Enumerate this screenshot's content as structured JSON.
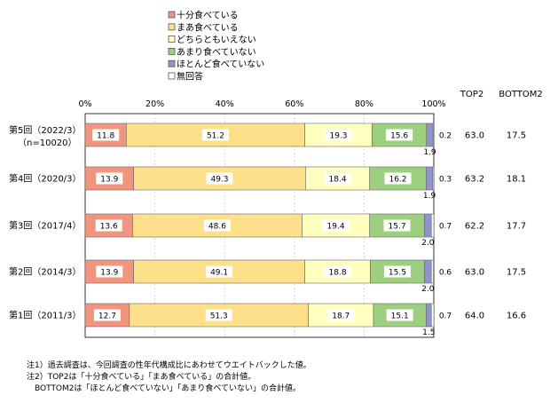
{
  "chart_data": {
    "type": "bar",
    "stacked": true,
    "orientation": "horizontal",
    "percent_scale": true,
    "xlim": [
      0,
      100
    ],
    "x_ticks": [
      "0%",
      "20%",
      "40%",
      "60%",
      "80%",
      "100%"
    ],
    "categories": [
      [
        "第5回（2022/3）",
        "（n=10020）"
      ],
      [
        "第4回（2020/3）"
      ],
      [
        "第3回（2017/4）"
      ],
      [
        "第2回（2014/3）"
      ],
      [
        "第1回（2011/3）"
      ]
    ],
    "series": [
      {
        "name": "十分食べている",
        "color": "#f2957e",
        "values": [
          11.8,
          13.9,
          13.6,
          13.9,
          12.7
        ]
      },
      {
        "name": "まあ食べている",
        "color": "#ffe08a",
        "values": [
          51.2,
          49.3,
          48.6,
          49.1,
          51.3
        ]
      },
      {
        "name": "どちらともいえない",
        "color": "#ffffc0",
        "values": [
          19.3,
          18.4,
          19.4,
          18.8,
          18.7
        ]
      },
      {
        "name": "あまり食べていない",
        "color": "#9ccf7e",
        "values": [
          15.6,
          16.2,
          15.7,
          15.5,
          15.1
        ]
      },
      {
        "name": "ほとんど食べていない",
        "color": "#8d95cf",
        "values": [
          1.9,
          1.9,
          2.0,
          2.0,
          1.5
        ]
      },
      {
        "name": "無回答",
        "color": "#ffffff",
        "values": [
          0.2,
          0.3,
          0.7,
          0.6,
          0.7
        ]
      }
    ],
    "summary_headers": [
      "TOP2",
      "BOTTOM2"
    ],
    "top2": [
      "63.0",
      "63.2",
      "62.2",
      "63.0",
      "64.0"
    ],
    "bottom2": [
      "17.5",
      "18.1",
      "17.7",
      "17.5",
      "16.6"
    ],
    "value_labels": [
      [
        "11.8",
        "51.2",
        "19.3",
        "15.6",
        "1.9",
        "0.2"
      ],
      [
        "13.9",
        "49.3",
        "18.4",
        "16.2",
        "1.9",
        "0.3"
      ],
      [
        "13.6",
        "48.6",
        "19.4",
        "15.7",
        "2.0",
        "0.7"
      ],
      [
        "13.9",
        "49.1",
        "18.8",
        "15.5",
        "2.0",
        "0.6"
      ],
      [
        "12.7",
        "51.3",
        "18.7",
        "15.1",
        "1.5",
        "0.7"
      ]
    ]
  },
  "notes": [
    "注1）過去調査は、今回調査の性年代構成比にあわせてウエイトバックした値。",
    "注2）TOP2は「十分食べている」「まあ食べている」の合計値。",
    "　BOTTOM2は「ほとんど食べていない」「あまり食べていない」の合計値。"
  ]
}
